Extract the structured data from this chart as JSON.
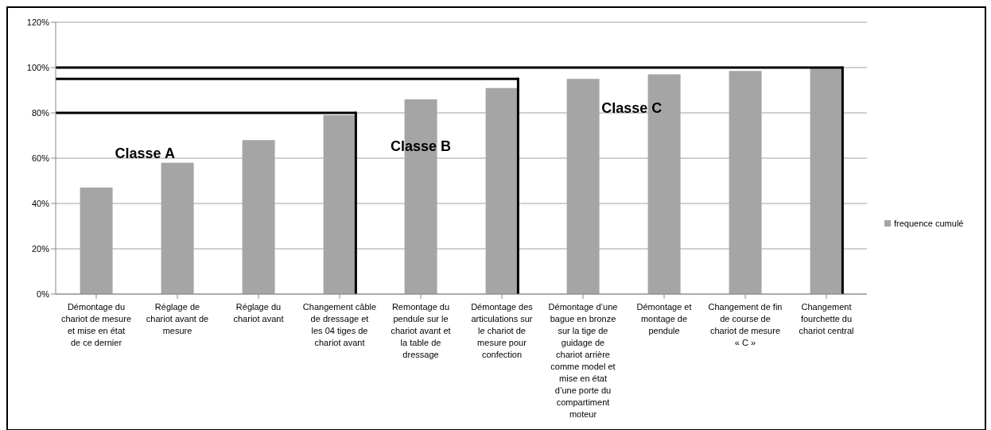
{
  "chart_data": {
    "type": "bar",
    "categories": [
      "Démontage du chariot de mesure et mise en état de ce dernier",
      "Réglage de chariot avant de mesure",
      "Réglage du chariot avant",
      "Changement câble de dressage et les 04 tiges de chariot avant",
      "Remontage du pendule sur le chariot avant et la table de dressage",
      "Démontage des articulations sur le chariot de mesure pour confection",
      "Démontage d’une bague en bronze sur la tige de guidage de chariot arrière comme model et mise en état d’une porte du compartiment moteur",
      "Démontage et montage de pendule",
      "Changement de fin de course de chariot de mesure « C »",
      "Changement fourchette du chariot central"
    ],
    "series": [
      {
        "name": "frequence cumulé",
        "color": "#a5a5a5",
        "values": [
          47,
          58,
          68,
          79,
          86,
          91,
          95,
          97,
          98.5,
          100
        ]
      }
    ],
    "ylim": [
      0,
      120
    ],
    "yticks": [
      {
        "value": 0,
        "label": "0%"
      },
      {
        "value": 20,
        "label": "20%"
      },
      {
        "value": 40,
        "label": "40%"
      },
      {
        "value": 60,
        "label": "60%"
      },
      {
        "value": 80,
        "label": "80%"
      },
      {
        "value": 100,
        "label": "100%"
      },
      {
        "value": 120,
        "label": "120%"
      }
    ],
    "grid": "y",
    "legend": "right",
    "ref_lines": [
      {
        "axis": "y",
        "value": 80,
        "color": "#000000"
      },
      {
        "axis": "y",
        "value": 95,
        "color": "#000000"
      },
      {
        "axis": "y",
        "value": 100,
        "color": "#000000"
      },
      {
        "axis": "x",
        "value": "Changement câble de dressage et les 04 tiges de chariot avant",
        "color": "#000000"
      },
      {
        "axis": "x",
        "value": "Démontage des articulations sur le chariot de mesure pour confection",
        "color": "#000000"
      },
      {
        "axis": "x",
        "value": "Changement fourchette du chariot central",
        "color": "#000000"
      }
    ],
    "annotations": [
      "Classe A",
      "Classe B",
      "Classe C"
    ]
  }
}
